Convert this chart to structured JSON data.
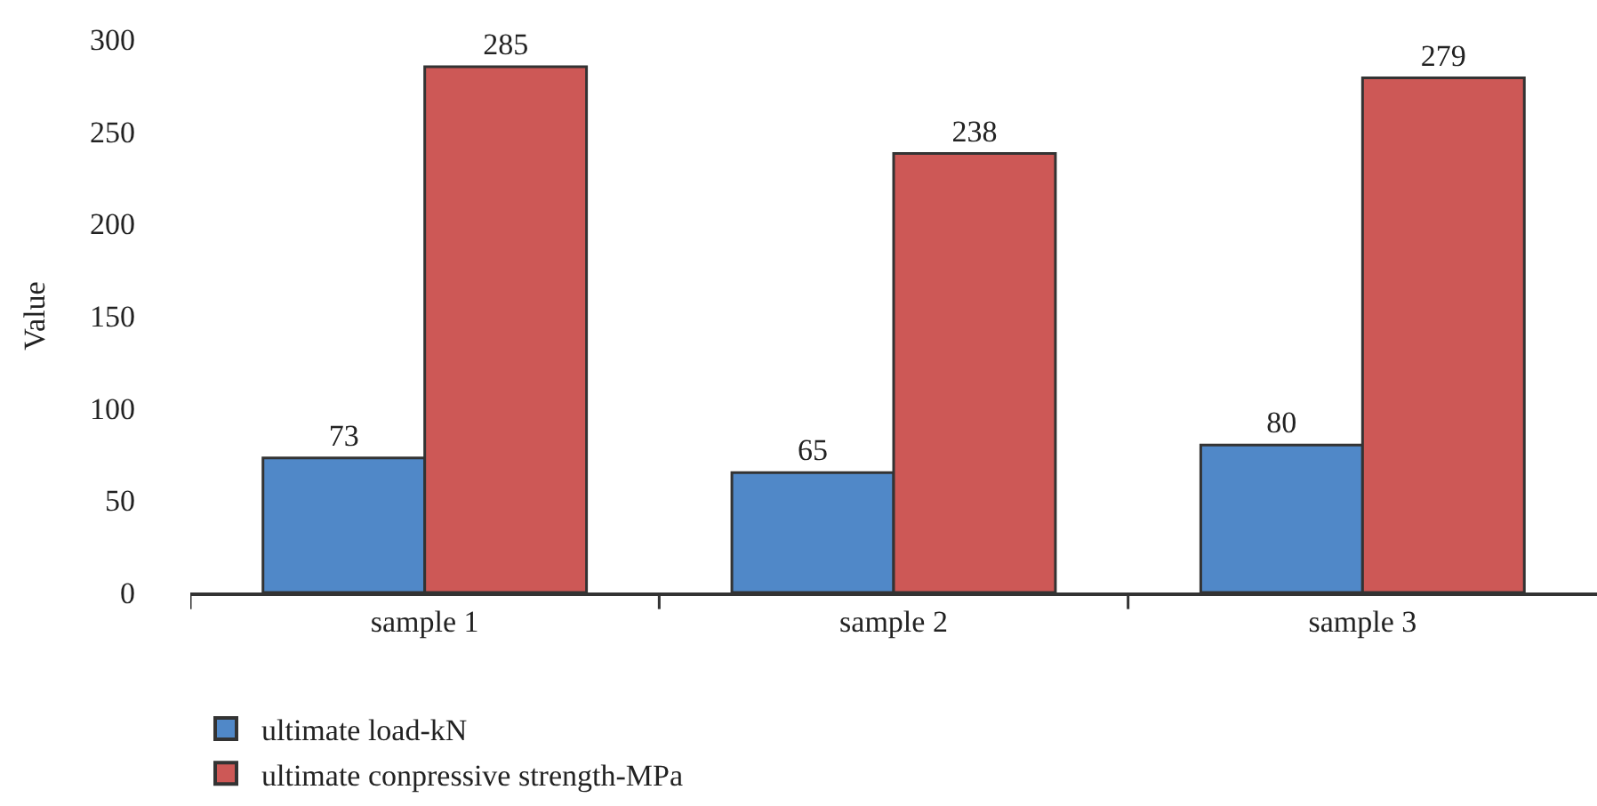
{
  "chart_data": {
    "type": "bar",
    "ylabel": "Value",
    "categories": [
      "sample 1",
      "sample 2",
      "sample 3"
    ],
    "series": [
      {
        "name": "ultimate load-kN",
        "color": "#5088c8",
        "values": [
          73,
          65,
          80
        ]
      },
      {
        "name": "ultimate conpressive strength-MPa",
        "color": "#cd5856",
        "values": [
          285,
          238,
          279
        ]
      }
    ],
    "ylim": [
      0,
      300
    ],
    "yticks": [
      0,
      50,
      100,
      150,
      200,
      250,
      300
    ],
    "data_labels": true,
    "legend": "bottom left"
  }
}
